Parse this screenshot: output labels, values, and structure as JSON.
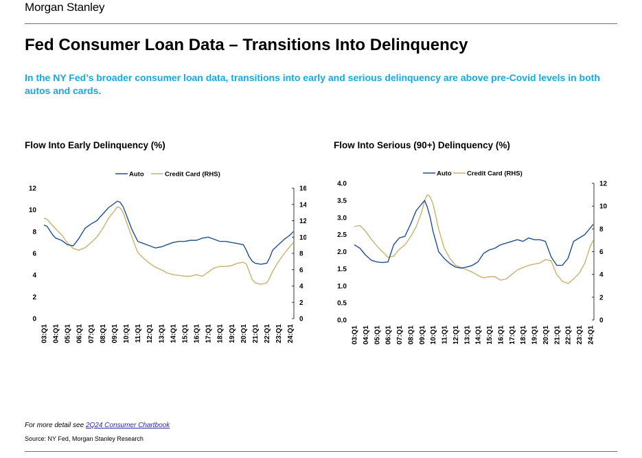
{
  "header": {
    "logo_text": "Morgan Stanley",
    "title": "Fed Consumer Loan Data – Transitions Into Delinquency",
    "subtitle": "In the NY Fed’s broader consumer loan data, transitions into early and serious delinquency are above pre-Covid levels in both autos and cards."
  },
  "colors": {
    "auto": "#1f4e91",
    "credit_card": "#c9b070",
    "accent": "#18a7dd"
  },
  "footer": {
    "note_prefix": "For more detail see ",
    "note_link": "2Q24 Consumer Chartbook",
    "source": "Source: NY Fed, Morgan Stanley Research"
  },
  "chart_data": [
    {
      "type": "line",
      "title": "Flow Into Early Delinquency (%)",
      "categories": [
        "03:Q1",
        "04:Q1",
        "05:Q1",
        "06:Q1",
        "07:Q1",
        "08:Q1",
        "09:Q1",
        "10:Q1",
        "11:Q1",
        "12:Q1",
        "13:Q1",
        "14:Q1",
        "15:Q1",
        "16:Q1",
        "17:Q1",
        "18:Q1",
        "19:Q1",
        "20:Q1",
        "21:Q1",
        "22:Q1",
        "23:Q1",
        "24:Q1"
      ],
      "x": [
        2003,
        2003.25,
        2003.5,
        2003.75,
        2004,
        2004.5,
        2005,
        2005.5,
        2006,
        2006.5,
        2007,
        2007.5,
        2008,
        2008.5,
        2009,
        2009.25,
        2009.5,
        2009.75,
        2010,
        2010.5,
        2011,
        2011.5,
        2012,
        2012.5,
        2013,
        2013.5,
        2014,
        2014.5,
        2015,
        2015.5,
        2016,
        2016.5,
        2017,
        2017.5,
        2018,
        2018.5,
        2019,
        2019.5,
        2020,
        2020.25,
        2020.5,
        2020.75,
        2021,
        2021.5,
        2022,
        2022.25,
        2022.5,
        2023,
        2023.5,
        2024,
        2024.25
      ],
      "ylim": [
        0,
        12
      ],
      "yticks": [
        "0",
        "2",
        "4",
        "6",
        "8",
        "10",
        "12"
      ],
      "y2lim": [
        0,
        16
      ],
      "y2ticks": [
        "0",
        "2",
        "4",
        "6",
        "8",
        "10",
        "12",
        "14",
        "16"
      ],
      "series": [
        {
          "name": "Auto",
          "axis": "left",
          "values": [
            8.6,
            8.5,
            8.1,
            7.7,
            7.4,
            7.2,
            6.8,
            6.7,
            7.4,
            8.3,
            8.7,
            9.0,
            9.6,
            10.2,
            10.6,
            10.8,
            10.7,
            10.3,
            9.6,
            8.2,
            7.1,
            6.9,
            6.7,
            6.5,
            6.6,
            6.8,
            7.0,
            7.1,
            7.1,
            7.2,
            7.2,
            7.4,
            7.5,
            7.3,
            7.1,
            7.1,
            7.0,
            6.9,
            6.8,
            6.3,
            5.7,
            5.3,
            5.1,
            5.0,
            5.1,
            5.6,
            6.3,
            6.8,
            7.3,
            7.7,
            8.0
          ]
        },
        {
          "name": "Credit Card (RHS)",
          "axis": "right",
          "values": [
            12.3,
            12.2,
            11.8,
            11.4,
            11.0,
            10.3,
            9.3,
            8.6,
            8.4,
            8.7,
            9.3,
            10.0,
            11.0,
            12.3,
            13.2,
            13.7,
            13.6,
            13.0,
            12.0,
            10.0,
            8.1,
            7.4,
            6.8,
            6.3,
            6.0,
            5.6,
            5.4,
            5.3,
            5.2,
            5.2,
            5.4,
            5.2,
            5.7,
            6.2,
            6.4,
            6.4,
            6.5,
            6.8,
            6.9,
            6.7,
            5.8,
            4.8,
            4.4,
            4.2,
            4.4,
            5.0,
            5.8,
            7.0,
            8.0,
            8.9,
            9.3
          ]
        }
      ]
    },
    {
      "type": "line",
      "title": "Flow Into Serious (90+) Delinquency (%)",
      "categories": [
        "03:Q1",
        "04:Q1",
        "05:Q1",
        "06:Q1",
        "07:Q1",
        "08:Q1",
        "09:Q1",
        "10:Q1",
        "11:Q1",
        "12:Q1",
        "13:Q1",
        "14:Q1",
        "15:Q1",
        "16:Q1",
        "17:Q1",
        "18:Q1",
        "19:Q1",
        "20:Q1",
        "21:Q1",
        "22:Q1",
        "23:Q1",
        "24:Q1"
      ],
      "x": [
        2003,
        2003.5,
        2004,
        2004.5,
        2005,
        2005.5,
        2006,
        2006.5,
        2007,
        2007.5,
        2008,
        2008.5,
        2009,
        2009.25,
        2009.5,
        2009.75,
        2010,
        2010.5,
        2011,
        2011.5,
        2012,
        2012.5,
        2013,
        2013.5,
        2014,
        2014.5,
        2015,
        2015.5,
        2016,
        2016.5,
        2017,
        2017.5,
        2018,
        2018.5,
        2019,
        2019.5,
        2020,
        2020.5,
        2021,
        2021.5,
        2022,
        2022.5,
        2023,
        2023.5,
        2024,
        2024.25
      ],
      "ylim": [
        0,
        4
      ],
      "yticks": [
        "0.0",
        "0.5",
        "1.0",
        "1.5",
        "2.0",
        "2.5",
        "3.0",
        "3.5",
        "4.0"
      ],
      "y2lim": [
        0,
        12
      ],
      "y2ticks": [
        "0",
        "2",
        "4",
        "6",
        "8",
        "10",
        "12"
      ],
      "series": [
        {
          "name": "Auto",
          "axis": "left",
          "values": [
            2.2,
            2.1,
            1.9,
            1.75,
            1.7,
            1.68,
            1.7,
            2.2,
            2.4,
            2.45,
            2.8,
            3.2,
            3.4,
            3.5,
            3.3,
            3.0,
            2.6,
            2.0,
            1.8,
            1.65,
            1.55,
            1.52,
            1.55,
            1.6,
            1.7,
            1.95,
            2.05,
            2.1,
            2.2,
            2.25,
            2.3,
            2.35,
            2.3,
            2.4,
            2.35,
            2.35,
            2.3,
            1.85,
            1.6,
            1.6,
            1.8,
            2.3,
            2.4,
            2.5,
            2.7,
            2.8
          ]
        },
        {
          "name": "Credit Card (RHS)",
          "axis": "right",
          "values": [
            8.2,
            8.3,
            7.8,
            7.1,
            6.5,
            6.0,
            5.5,
            5.6,
            6.2,
            6.6,
            7.3,
            8.2,
            9.5,
            10.5,
            11.0,
            10.8,
            10.2,
            8.0,
            6.3,
            5.4,
            4.8,
            4.6,
            4.4,
            4.2,
            3.9,
            3.7,
            3.8,
            3.8,
            3.5,
            3.6,
            4.0,
            4.4,
            4.6,
            4.8,
            4.9,
            5.0,
            5.3,
            5.2,
            4.0,
            3.4,
            3.2,
            3.6,
            4.1,
            5.0,
            6.5,
            7.0
          ]
        }
      ]
    }
  ]
}
